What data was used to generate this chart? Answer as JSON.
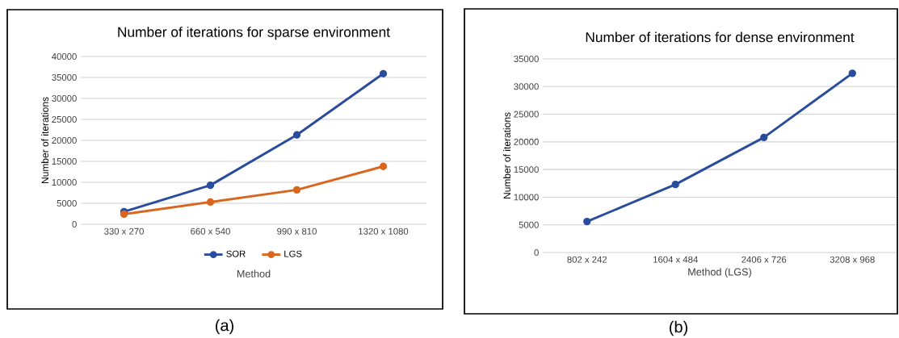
{
  "chart_data": [
    {
      "type": "line",
      "title": "Number of iterations for sparse environment",
      "xlabel": "Method",
      "ylabel": "Number of iterations",
      "categories": [
        "330 x 270",
        "660 x 540",
        "990 x 810",
        "1320 x 1080"
      ],
      "series": [
        {
          "name": "SOR",
          "color": "#2a4c9c",
          "values": [
            3000,
            9300,
            21300,
            35900
          ]
        },
        {
          "name": "LGS",
          "color": "#d9661f",
          "values": [
            2400,
            5300,
            8200,
            13800
          ]
        }
      ],
      "ylim": [
        0,
        40000
      ],
      "yticks": [
        0,
        5000,
        10000,
        15000,
        20000,
        25000,
        30000,
        35000,
        40000
      ],
      "grid": "y",
      "legend": "bottom",
      "marker": "circle",
      "annotations": [
        "(a)"
      ]
    },
    {
      "type": "line",
      "title": "Number of iterations for dense environment",
      "xlabel": "Method (LGS)",
      "ylabel": "Number of iterations",
      "categories": [
        "802 x 242",
        "1604 x 484",
        "2406 x 726",
        "3208 x 968"
      ],
      "series": [
        {
          "color": "#2a4c9c",
          "values": [
            5600,
            12300,
            20800,
            32400
          ]
        }
      ],
      "ylim": [
        0,
        35000
      ],
      "yticks": [
        0,
        5000,
        10000,
        15000,
        20000,
        25000,
        30000,
        35000
      ],
      "grid": "y",
      "marker": "circle",
      "annotations": [
        "(b)"
      ]
    }
  ]
}
